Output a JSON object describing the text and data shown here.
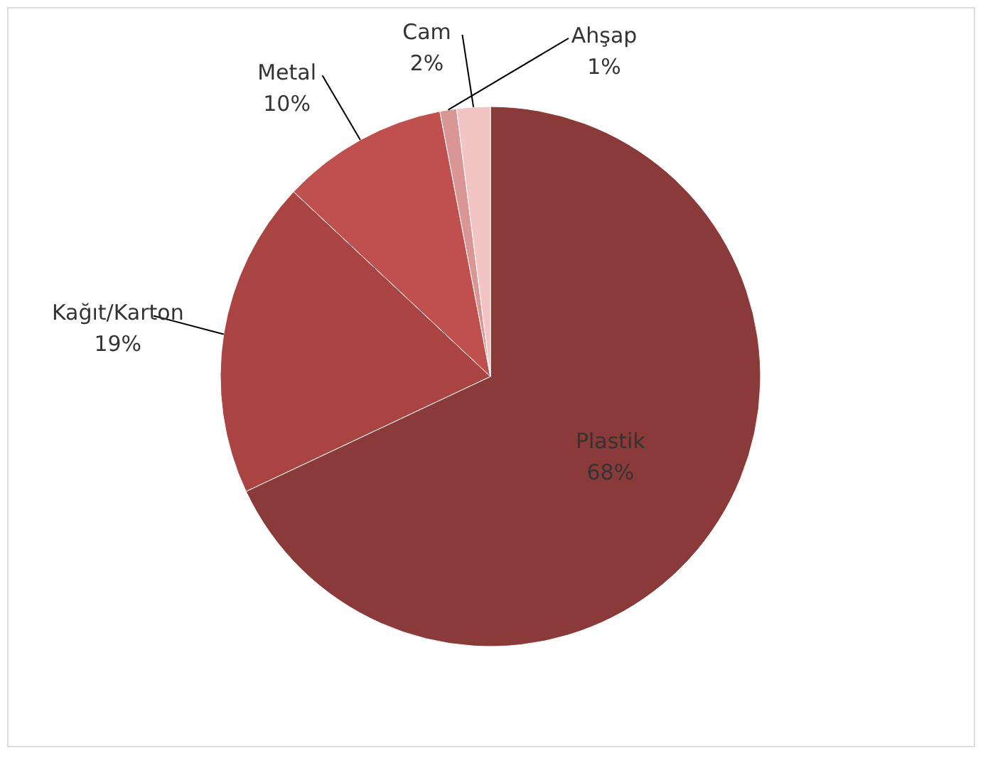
{
  "chart_data": {
    "type": "pie",
    "categories": [
      "Plastik",
      "Kağıt/Karton",
      "Metal",
      "Ahşap",
      "Cam"
    ],
    "values": [
      68,
      19,
      10,
      1,
      2
    ],
    "value_labels": [
      "68%",
      "19%",
      "10%",
      "1%",
      "2%"
    ],
    "colors": [
      "#8b3a3a",
      "#a94442",
      "#c0504d",
      "#d99694",
      "#f2c4c4"
    ],
    "legend": false
  }
}
